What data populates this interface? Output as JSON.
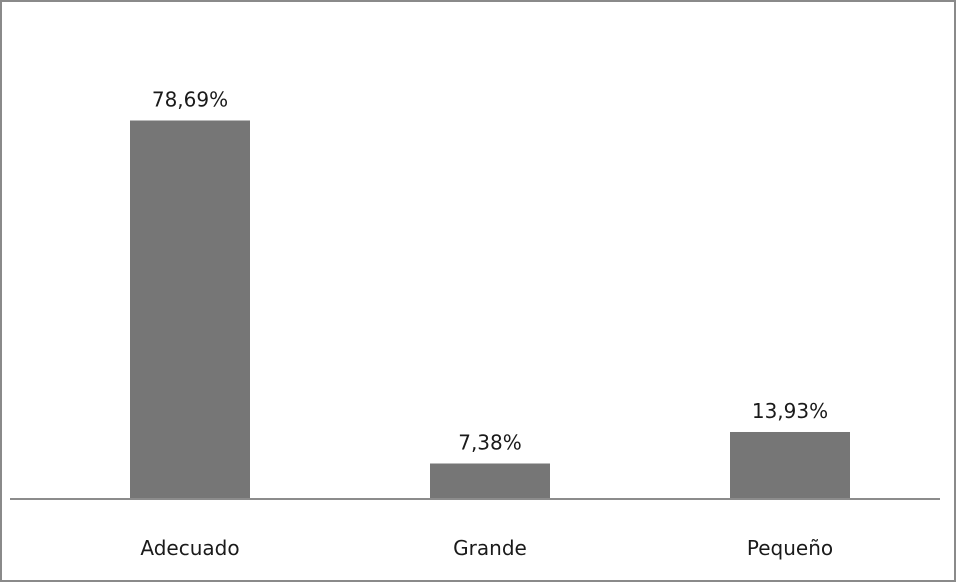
{
  "chart_data": {
    "type": "bar",
    "categories": [
      "Adecuado",
      "Grande",
      "Pequeño"
    ],
    "values": [
      78.69,
      7.38,
      13.93
    ],
    "value_labels": [
      "78,69%",
      "7,38%",
      "13,93%"
    ],
    "unit": "%",
    "title": "",
    "xlabel": "",
    "ylabel": "",
    "ylim": [
      0,
      100
    ],
    "grid": false,
    "legend": "none",
    "bar_color": "#767676"
  }
}
